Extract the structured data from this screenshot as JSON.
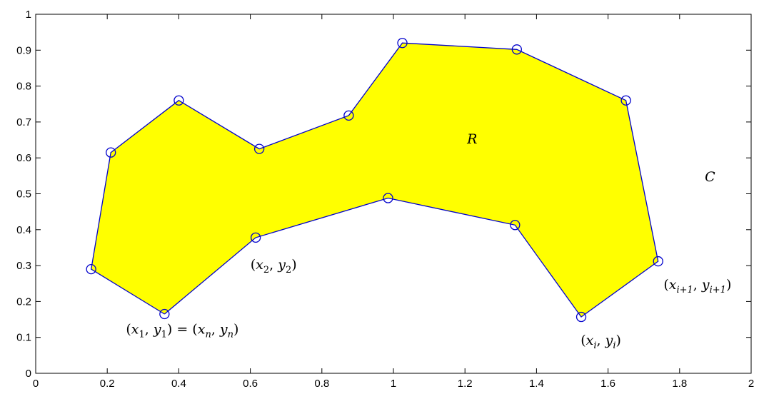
{
  "chart_data": {
    "type": "line",
    "title": "",
    "xlabel": "",
    "ylabel": "",
    "xlim": [
      0,
      2
    ],
    "ylim": [
      0,
      1
    ],
    "xticks": [
      0,
      0.2,
      0.4,
      0.6,
      0.8,
      1,
      1.2,
      1.4,
      1.6,
      1.8,
      2
    ],
    "yticks": [
      0,
      0.1,
      0.2,
      0.3,
      0.4,
      0.5,
      0.6,
      0.7,
      0.8,
      0.9,
      1
    ],
    "xtick_labels": [
      "0",
      "0.2",
      "0.4",
      "0.6",
      "0.8",
      "1",
      "1.2",
      "1.4",
      "1.6",
      "1.8",
      "2"
    ],
    "ytick_labels": [
      "0",
      "0.1",
      "0.2",
      "0.3",
      "0.4",
      "0.5",
      "0.6",
      "0.7",
      "0.8",
      "0.9",
      "1"
    ],
    "grid": false,
    "fill_color": "#ffff00",
    "line_color": "#0000cc",
    "marker": "circle-open",
    "series": [
      {
        "x": [
          0.36,
          0.155,
          0.21,
          0.4,
          0.625,
          0.875,
          1.025,
          1.345,
          1.65,
          1.74,
          1.525,
          1.34,
          0.985,
          0.615,
          0.36
        ],
        "y": [
          0.165,
          0.29,
          0.615,
          0.76,
          0.625,
          0.718,
          0.92,
          0.902,
          0.76,
          0.312,
          0.157,
          0.413,
          0.488,
          0.378,
          0.165
        ]
      }
    ],
    "annotations": [
      {
        "id": "p1",
        "text": "(x1, y1) = (xn, yn)",
        "x": 0.41,
        "y": 0.11,
        "parts": [
          {
            "t": "("
          },
          {
            "t": "x"
          },
          {
            "t": "1",
            "sub": true
          },
          {
            "t": ", "
          },
          {
            "t": "y"
          },
          {
            "t": "1",
            "sub": true
          },
          {
            "t": ") = ("
          },
          {
            "t": "x"
          },
          {
            "t": "n",
            "sub": true
          },
          {
            "t": ", "
          },
          {
            "t": "y"
          },
          {
            "t": "n",
            "sub": true
          },
          {
            "t": ")"
          }
        ]
      },
      {
        "id": "p2",
        "text": "(x2, y2)",
        "x": 0.665,
        "y": 0.29,
        "parts": [
          {
            "t": "("
          },
          {
            "t": "x"
          },
          {
            "t": "2",
            "sub": true
          },
          {
            "t": ", "
          },
          {
            "t": "y"
          },
          {
            "t": "2",
            "sub": true
          },
          {
            "t": ")"
          }
        ]
      },
      {
        "id": "pi",
        "text": "(xi, yi)",
        "x": 1.58,
        "y": 0.08,
        "parts": [
          {
            "t": "("
          },
          {
            "t": "x"
          },
          {
            "t": "i",
            "sub": true
          },
          {
            "t": ", "
          },
          {
            "t": "y"
          },
          {
            "t": "i",
            "sub": true
          },
          {
            "t": ")"
          }
        ]
      },
      {
        "id": "pi1",
        "text": "(xi+1, yi+1)",
        "x": 1.85,
        "y": 0.235,
        "parts": [
          {
            "t": "("
          },
          {
            "t": "x"
          },
          {
            "t": "i+1",
            "sub": true
          },
          {
            "t": ", "
          },
          {
            "t": "y"
          },
          {
            "t": "i+1",
            "sub": true
          },
          {
            "t": ")"
          }
        ]
      },
      {
        "id": "region",
        "text": "R",
        "x": 1.22,
        "y": 0.64,
        "parts": [
          {
            "t": "R"
          }
        ]
      },
      {
        "id": "curve",
        "text": "C",
        "x": 1.885,
        "y": 0.535,
        "parts": [
          {
            "t": "C"
          }
        ]
      }
    ]
  }
}
